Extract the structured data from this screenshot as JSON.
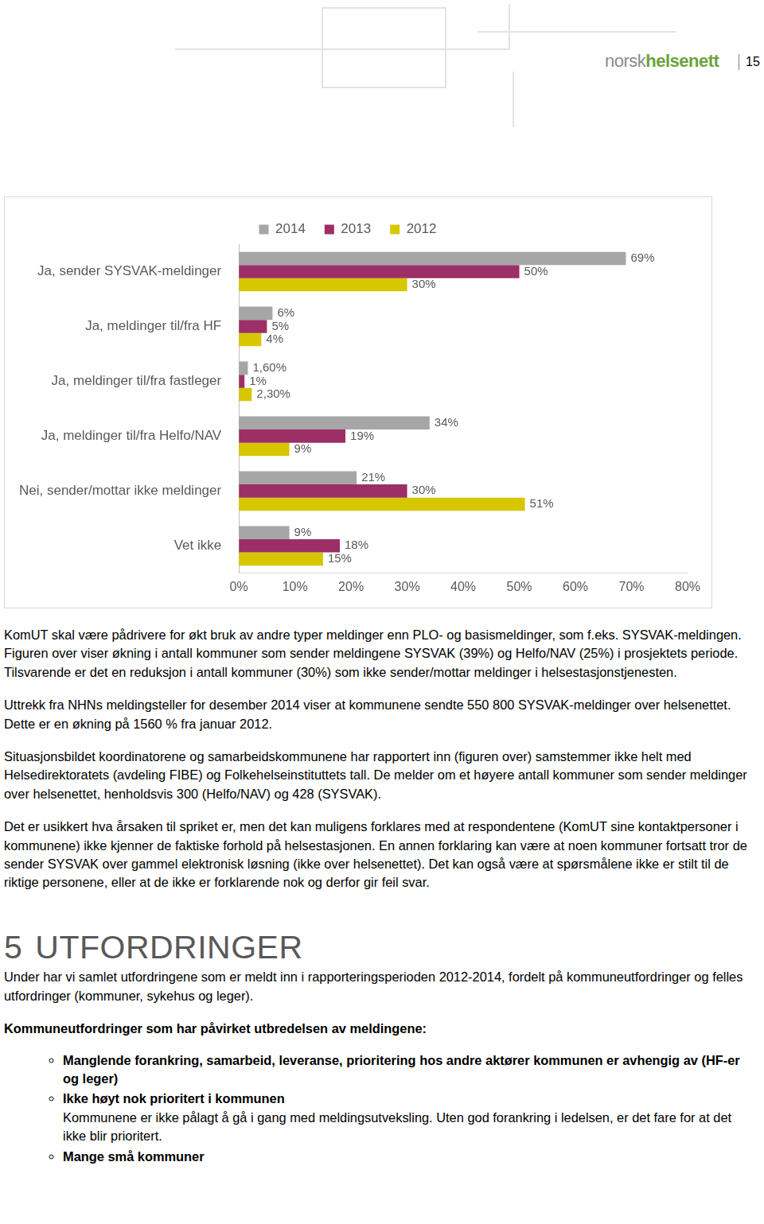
{
  "header": {
    "brand_parts": [
      "norsk",
      "helsenett"
    ],
    "page": 15
  },
  "chart_data": {
    "type": "bar",
    "orientation": "horizontal",
    "legend": "top",
    "grid": false,
    "data_labels": true,
    "categories": [
      "Ja, sender SYSVAK-meldinger",
      "Ja, meldinger til/fra HF",
      "Ja, meldinger til/fra fastleger",
      "Ja, meldinger til/fra Helfo/NAV",
      "Nei, sender/mottar ikke meldinger",
      "Vet ikke"
    ],
    "series": [
      {
        "name": "2014",
        "color": "#a6a6a6",
        "values": [
          69,
          6,
          1.6,
          34,
          21,
          9
        ],
        "value_labels": [
          "69%",
          "6%",
          "1,60%",
          "34%",
          "21%",
          "9%"
        ]
      },
      {
        "name": "2013",
        "color": "#9c2f66",
        "values": [
          50,
          5,
          1,
          19,
          30,
          18
        ],
        "value_labels": [
          "50%",
          "5%",
          "1%",
          "19%",
          "30%",
          "18%"
        ]
      },
      {
        "name": "2012",
        "color": "#d6c700",
        "values": [
          30,
          4,
          2.3,
          9,
          51,
          15
        ],
        "value_labels": [
          "30%",
          "4%",
          "2,30%",
          "9%",
          "51%",
          "15%"
        ]
      }
    ],
    "xlim": [
      0,
      80
    ],
    "xticks": [
      {
        "value": 0,
        "label": "0%"
      },
      {
        "value": 10,
        "label": "10%"
      },
      {
        "value": 20,
        "label": "20%"
      },
      {
        "value": 30,
        "label": "30%"
      },
      {
        "value": 40,
        "label": "40%"
      },
      {
        "value": 50,
        "label": "50%"
      },
      {
        "value": 60,
        "label": "60%"
      },
      {
        "value": 70,
        "label": "70%"
      },
      {
        "value": 80,
        "label": "80%"
      }
    ]
  },
  "body": {
    "paragraphs_before": [
      "KomUT skal være pådrivere for økt bruk av andre typer meldinger enn PLO- og basismeldinger, som f.eks. SYSVAK-meldingen. Figuren over viser økning i antall kommuner som sender meldingene SYSVAK (39%) og Helfo/NAV (25%) i prosjektets periode. Tilsvarende er det en reduksjon i antall kommuner (30%) som ikke sender/mottar meldinger i helsestasjonstjenesten.",
      "Uttrekk fra NHNs meldingsteller for desember 2014 viser at kommunene sendte 550 800 SYSVAK-meldinger over helsenettet. Dette er en økning på 1560 % fra januar 2012.",
      "Situasjonsbildet koordinatorene og samarbeidskommunene har rapportert inn (figuren over) samstemmer ikke helt med Helsedirektoratets (avdeling FIBE) og Folkehelseinstituttets tall. De melder om et høyere antall kommuner som sender meldinger over helsenettet, henholdsvis 300 (Helfo/NAV) og 428 (SYSVAK).",
      "Det er usikkert hva årsaken til spriket er, men det kan muligens forklares med at respondentene (KomUT sine kontaktpersoner i kommunene) ikke kjenner de faktiske forhold på helsestasjonen. En annen forklaring kan være at noen kommuner fortsatt tror de sender SYSVAK over gammel elektronisk løsning (ikke over helsenettet). Det kan også være at spørsmålene ikke er stilt til de riktige personene, eller at de ikke er forklarende nok og derfor gir feil svar."
    ],
    "heading": {
      "number": "5",
      "text": "UTFORDRINGER"
    },
    "paragraphs_after": [
      "Under har vi samlet utfordringene som er meldt inn i rapporteringsperioden 2012-2014, fordelt på kommuneutfordringer og felles utfordringer (kommuner, sykehus og leger)."
    ],
    "subheading": "Kommuneutfordringer som har påvirket utbredelsen av meldingene:",
    "bullets": [
      {
        "title": "Manglende forankring, samarbeid, leveranse, prioritering hos andre aktører kommunen er avhengig av (HF-er og leger)"
      },
      {
        "title": "Ikke høyt nok prioritert i kommunen",
        "text": "Kommunene er ikke pålagt å gå i gang med meldingsutveksling. Uten god forankring i ledelsen, er det fare for at det ikke blir prioritert."
      },
      {
        "title": "Mange små kommuner"
      }
    ]
  }
}
